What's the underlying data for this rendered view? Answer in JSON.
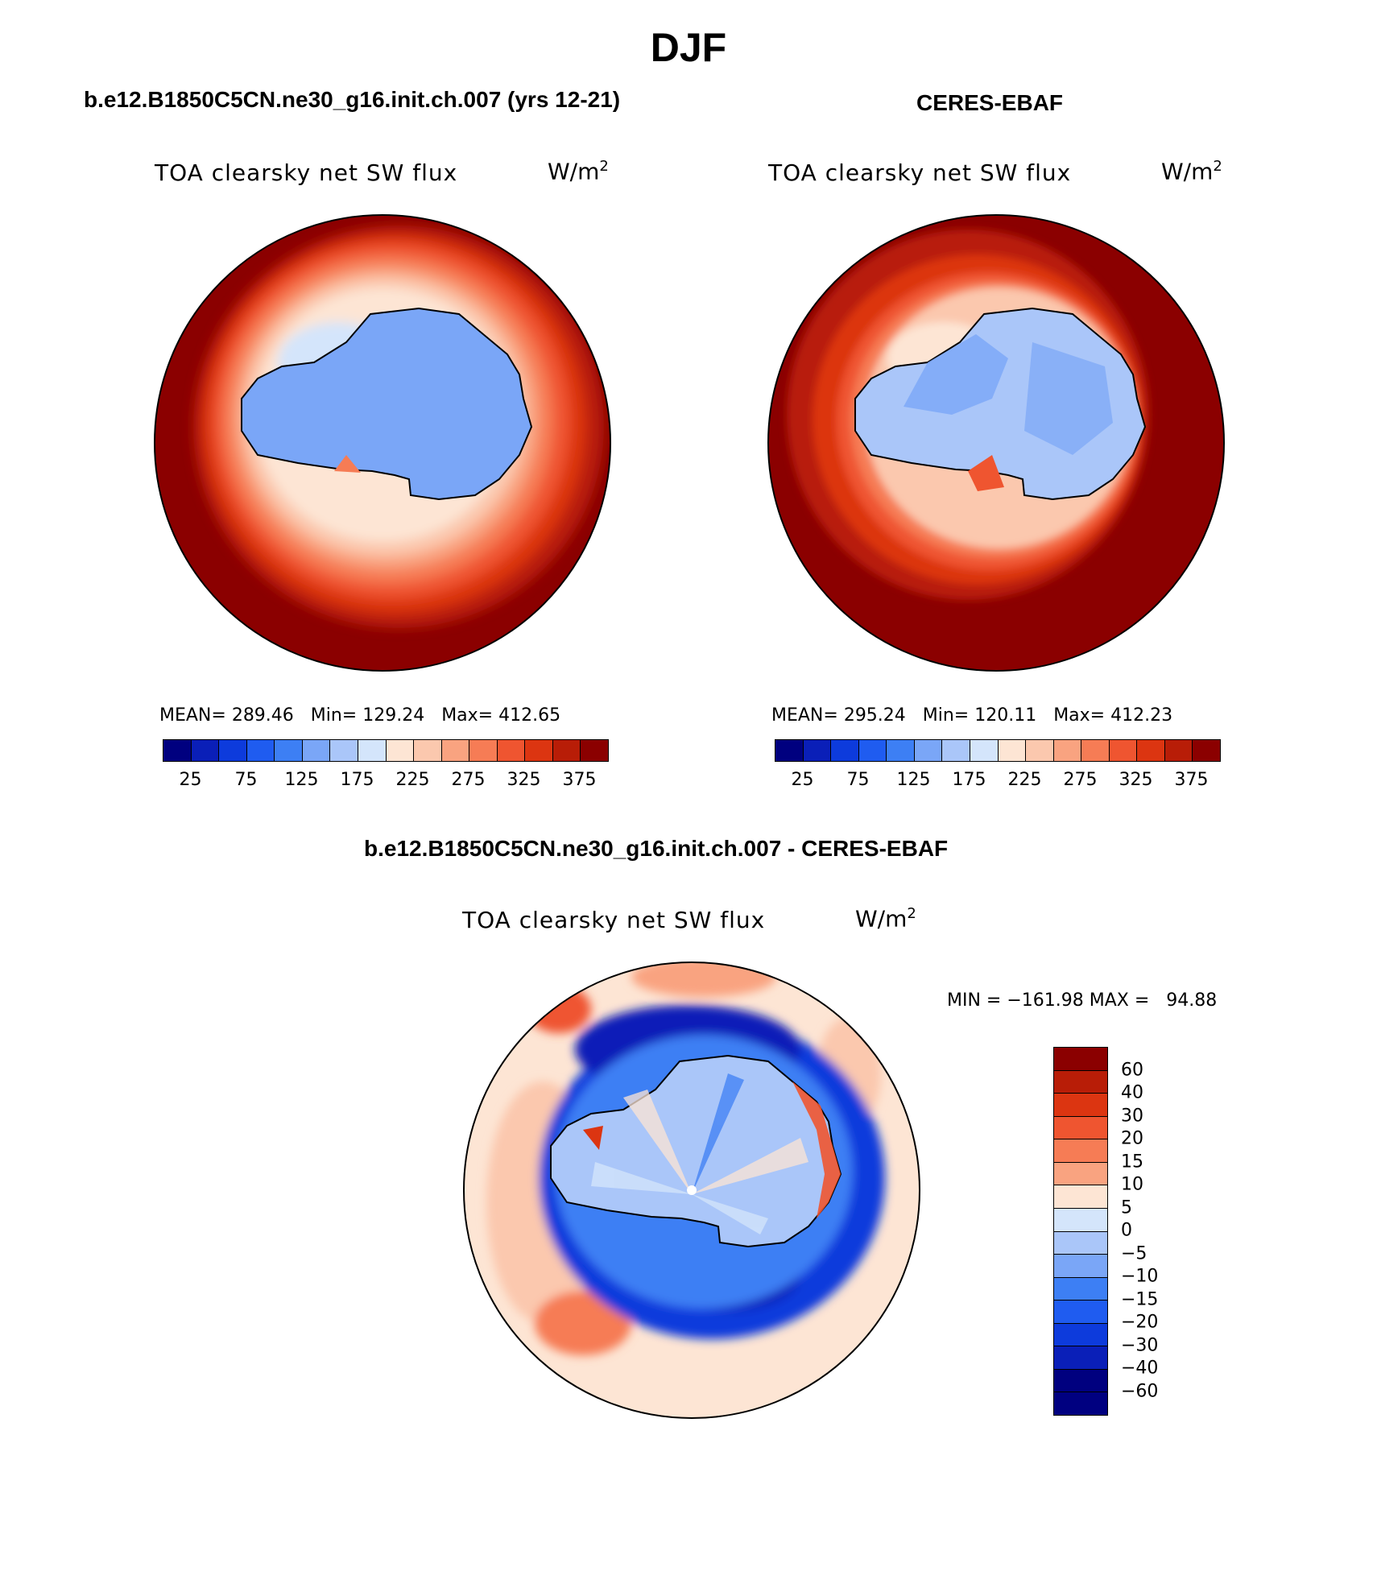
{
  "page": {
    "title": "DJF",
    "bottom_title": "b.e12.B1850C5CN.ne30_g16.init.ch.007 - CERES-EBAF"
  },
  "panels": [
    {
      "case_title": "b.e12.B1850C5CN.ne30_g16.init.ch.007 (yrs 12-21)",
      "variable": "TOA clearsky net SW flux",
      "unit": "W/m",
      "unit_exp": "2",
      "stats": "MEAN= 289.46   Min= 129.24   Max= 412.65"
    },
    {
      "case_title": "CERES-EBAF",
      "variable": "TOA clearsky net SW flux",
      "unit": "W/m",
      "unit_exp": "2",
      "stats": "MEAN= 295.24   Min= 120.11   Max= 412.23"
    }
  ],
  "diff_panel": {
    "variable": "TOA clearsky net SW flux",
    "unit": "W/m",
    "unit_exp": "2",
    "stats": "MIN = −161.98 MAX =   94.88"
  },
  "colorbar_abs": {
    "colors": [
      "#00007f",
      "#0a1fb8",
      "#0d3bdc",
      "#1f5cf0",
      "#3d7ff4",
      "#7aa6f7",
      "#aac6f9",
      "#d4e5fb",
      "#fde5d4",
      "#fbc8ae",
      "#f9a380",
      "#f67c55",
      "#ef5530",
      "#dc3511",
      "#b81d07",
      "#8b0000"
    ],
    "tick_labels": [
      "25",
      "75",
      "125",
      "175",
      "225",
      "275",
      "325",
      "375"
    ]
  },
  "colorbar_diff": {
    "colors": [
      "#8b0000",
      "#b81d07",
      "#dc3511",
      "#ef5530",
      "#f67c55",
      "#f9a380",
      "#fde5d4",
      "#d4e5fb",
      "#aac6f9",
      "#7aa6f7",
      "#3d7ff4",
      "#1f5cf0",
      "#0d3bdc",
      "#0a1fb8",
      "#00007f",
      "#000080"
    ],
    "tick_labels": [
      "60",
      "40",
      "30",
      "20",
      "15",
      "10",
      "5",
      "0",
      "−5",
      "−10",
      "−15",
      "−20",
      "−30",
      "−40",
      "−60"
    ]
  }
}
